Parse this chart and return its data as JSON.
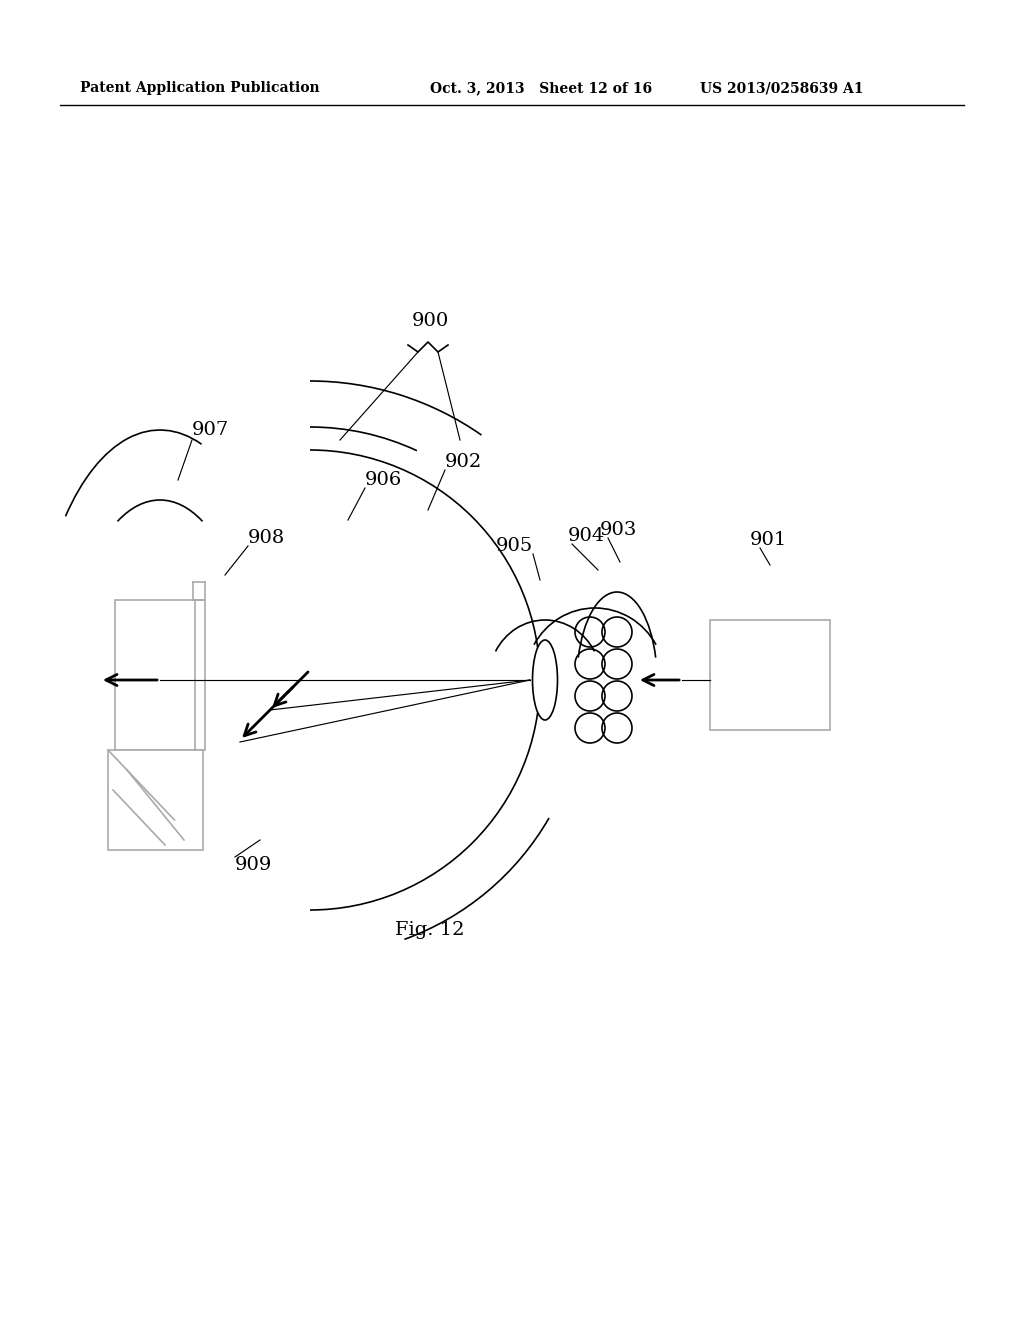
{
  "header_left": "Patent Application Publication",
  "header_mid": "Oct. 3, 2013   Sheet 12 of 16",
  "header_right": "US 2013/0258639 A1",
  "fig_label": "Fig. 12",
  "ref_900": "900",
  "ref_901": "901",
  "ref_902": "902",
  "ref_903": "903",
  "ref_904": "904",
  "ref_905": "905",
  "ref_906": "906",
  "ref_907": "907",
  "ref_908": "908",
  "ref_909": "909",
  "bg_color": "#ffffff",
  "line_color": "#000000",
  "gray_color": "#aaaaaa"
}
